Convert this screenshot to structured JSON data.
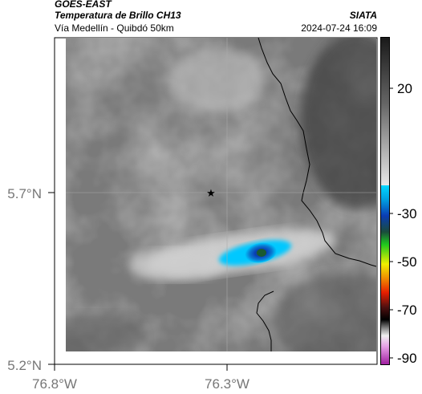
{
  "header": {
    "satellite": "GOES-EAST",
    "product": "Temperatura de Brillo CH13",
    "route": "Vía Medellín - Quibdó 50km",
    "organization": "SIATA",
    "datetime": "2024-07-24 16:09"
  },
  "map": {
    "lat_ticks": [
      "5.7°N",
      "5.2°N"
    ],
    "lon_ticks": [
      "76.8°W",
      "76.3°W"
    ],
    "marker": "star-marker"
  },
  "colorbar": {
    "ticks": [
      "20",
      "-30",
      "-50",
      "-70",
      "-90"
    ],
    "colors": {
      "warm_dark": "#1a1a1a",
      "warm_light": "#e8e8e8",
      "cyan": "#00c8ff",
      "blue": "#0a3cb4",
      "green": "#1ec81e",
      "yellow": "#f0f000",
      "red": "#e61e00",
      "black": "#000000",
      "magenta": "#c83cc8"
    }
  }
}
